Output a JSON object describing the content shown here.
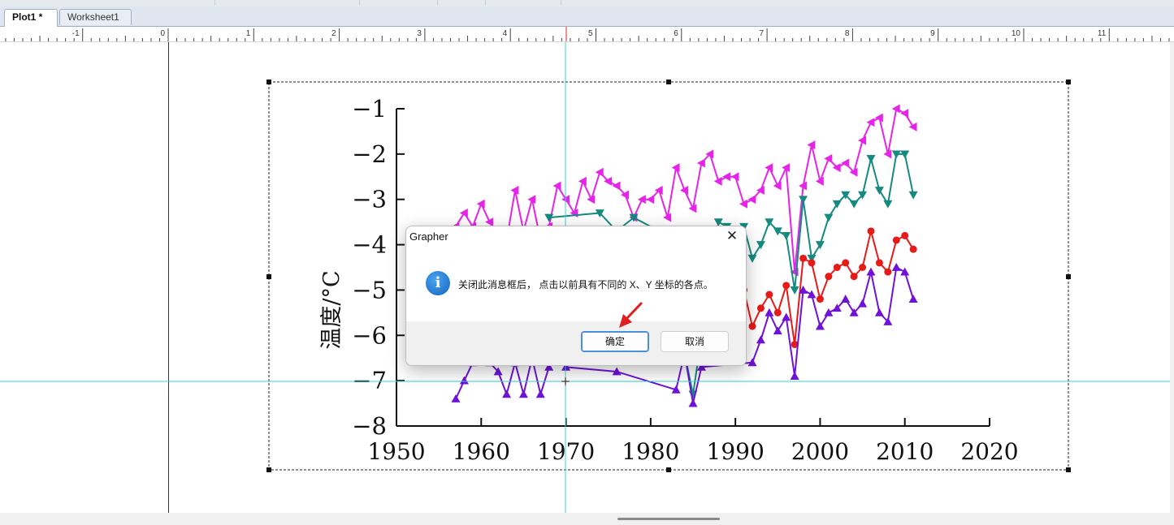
{
  "tabs": [
    {
      "label": "Plot1 *",
      "active": true
    },
    {
      "label": "Worksheet1",
      "active": false
    }
  ],
  "ruler": {
    "labels": [
      "-1",
      "0",
      "1",
      "2",
      "3",
      "4",
      "5",
      "6",
      "7",
      "8",
      "9",
      "10",
      "11"
    ]
  },
  "chart_data": {
    "type": "line",
    "title": "",
    "xlabel": "",
    "ylabel": "温度/°C",
    "xlim": [
      1950,
      2020
    ],
    "ylim": [
      -8,
      -1
    ],
    "xticks": [
      "1950",
      "1960",
      "1970",
      "1980",
      "1990",
      "2000",
      "2010",
      "2020"
    ],
    "yticks": [
      "−1",
      "−2",
      "−3",
      "−4",
      "−5",
      "−6",
      "−7",
      "−8"
    ],
    "grid": false,
    "series": [
      {
        "color": "#e524e8",
        "marker": "triangle-left",
        "x": [
          1957,
          1958,
          1959,
          1960,
          1961,
          1962,
          1963,
          1964,
          1965,
          1966,
          1967,
          1968,
          1969,
          1970,
          1971,
          1972,
          1973,
          1974,
          1975,
          1976,
          1977,
          1978,
          1979,
          1980,
          1981,
          1982,
          1983,
          1984,
          1985,
          1986,
          1987,
          1988,
          1989,
          1990,
          1991,
          1992,
          1993,
          1994,
          1995,
          1996,
          1997,
          1998,
          1999,
          2000,
          2001,
          2002,
          2003,
          2004,
          2005,
          2006,
          2007,
          2008,
          2009,
          2010,
          2011
        ],
        "y": [
          -3.6,
          -3.3,
          -3.6,
          -3.1,
          -3.5,
          -3.8,
          -3.9,
          -2.8,
          -3.7,
          -3.0,
          -3.9,
          -3.6,
          -2.7,
          -3.0,
          -3.3,
          -2.6,
          -3.0,
          -2.4,
          -2.6,
          -2.7,
          -2.9,
          -3.4,
          -3.0,
          -3.0,
          -2.8,
          -3.4,
          -2.3,
          -2.8,
          -3.2,
          -2.2,
          -2.0,
          -2.6,
          -2.5,
          -2.5,
          -3.1,
          -3.0,
          -2.8,
          -2.3,
          -2.7,
          -2.3,
          -4.6,
          -2.7,
          -1.8,
          -2.6,
          -2.1,
          -2.3,
          -2.2,
          -2.4,
          -1.7,
          -1.3,
          -1.2,
          -2.0,
          -1.0,
          -1.1,
          -1.4
        ]
      },
      {
        "color": "#148a80",
        "marker": "triangle-down",
        "x": [
          1968,
          1974,
          1976,
          1978,
          1981,
          1985,
          1988,
          1989,
          1990,
          1991,
          1992,
          1993,
          1994,
          1995,
          1996,
          1997,
          1998,
          1999,
          2000,
          2001,
          2002,
          2003,
          2004,
          2005,
          2006,
          2007,
          2008,
          2009,
          2010,
          2011
        ],
        "y": [
          -3.4,
          -3.3,
          -3.7,
          -3.4,
          -3.7,
          -7.3,
          -3.5,
          -3.6,
          -3.8,
          -3.6,
          -4.3,
          -4.0,
          -3.5,
          -3.7,
          -3.8,
          -5.0,
          -3.0,
          -4.3,
          -4.0,
          -3.4,
          -3.1,
          -2.9,
          -3.1,
          -2.9,
          -2.1,
          -2.8,
          -3.1,
          -2.0,
          -2.0,
          -2.9
        ]
      },
      {
        "color": "#e61a16",
        "marker": "circle",
        "x": [
          1991,
          1992,
          1993,
          1994,
          1995,
          1996,
          1997,
          1998,
          1999,
          2000,
          2001,
          2002,
          2003,
          2004,
          2005,
          2006,
          2007,
          2008,
          2009,
          2010,
          2011
        ],
        "y": [
          -5.0,
          -5.8,
          -5.4,
          -5.1,
          -5.5,
          -4.9,
          -6.2,
          -4.3,
          -4.4,
          -5.2,
          -4.7,
          -4.5,
          -4.4,
          -4.7,
          -4.5,
          -3.7,
          -4.4,
          -4.6,
          -3.9,
          -3.8,
          -4.1
        ]
      },
      {
        "color": "#6e12d8",
        "marker": "triangle-up",
        "x": [
          1957,
          1958,
          1959,
          1960,
          1961,
          1962,
          1963,
          1964,
          1965,
          1966,
          1967,
          1968,
          1969,
          1970,
          1976,
          1983,
          1984,
          1985,
          1986,
          1992,
          1993,
          1994,
          1995,
          1996,
          1997,
          1998,
          1999,
          2000,
          2001,
          2002,
          2003,
          2004,
          2005,
          2006,
          2007,
          2008,
          2009,
          2010,
          2011
        ],
        "y": [
          -7.4,
          -7.0,
          -6.6,
          -6.2,
          -6.6,
          -6.8,
          -7.3,
          -6.6,
          -7.3,
          -6.5,
          -7.3,
          -6.7,
          -6.4,
          -6.7,
          -6.8,
          -7.2,
          -6.4,
          -7.5,
          -6.7,
          -6.6,
          -6.1,
          -5.5,
          -5.9,
          -5.6,
          -6.9,
          -5.0,
          -5.1,
          -5.8,
          -5.5,
          -5.4,
          -5.2,
          -5.5,
          -5.3,
          -4.6,
          -5.5,
          -5.7,
          -4.5,
          -4.6,
          -5.2
        ]
      }
    ]
  },
  "dialog": {
    "title": "Grapher",
    "close_glyph": "✕",
    "icon": "info-icon",
    "icon_glyph": "i",
    "message": "关闭此消息框后， 点击以前具有不同的 X、Y 坐标的各点。",
    "ok_label": "确定",
    "cancel_label": "取消"
  }
}
